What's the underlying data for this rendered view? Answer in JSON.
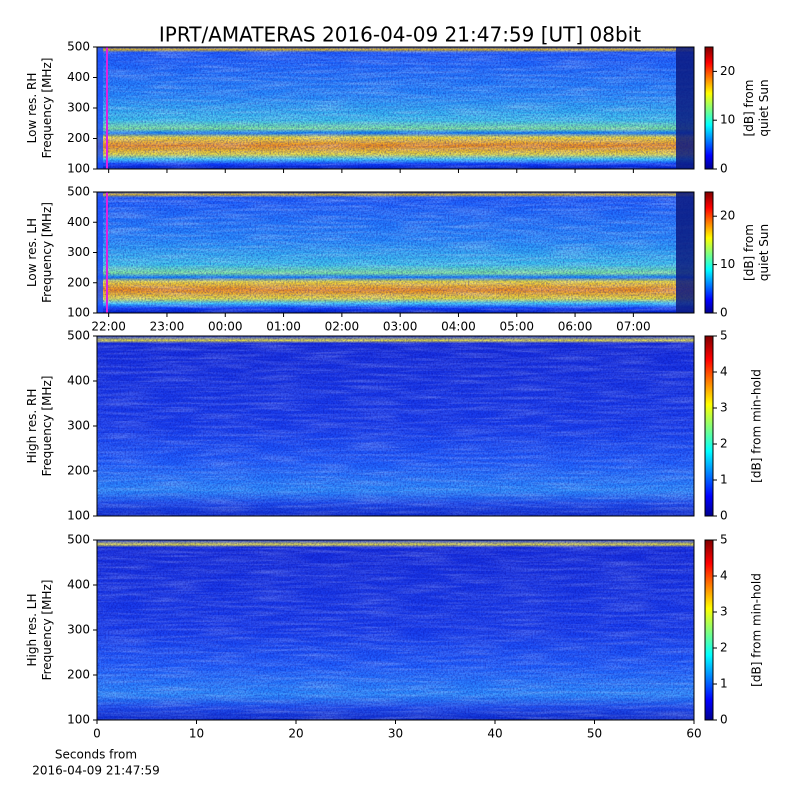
{
  "title": "IPRT/AMATERAS 2016-04-09 21:47:59 [UT]   08bit",
  "chart_data": [
    {
      "type": "spectrogram",
      "ylabel": [
        "Low res. RH",
        "Frequency [MHz]"
      ],
      "ylim": [
        100,
        500
      ],
      "yticks": [
        100,
        200,
        300,
        400,
        500
      ],
      "colormap": "jet",
      "clabel": [
        "[dB] from",
        "quiet Sun"
      ],
      "clim": [
        0,
        25
      ],
      "cticks": [
        0,
        10,
        20
      ]
    },
    {
      "type": "spectrogram",
      "ylabel": [
        "Low res. LH",
        "Frequency [MHz]"
      ],
      "ylim": [
        100,
        500
      ],
      "yticks": [
        100,
        200,
        300,
        400,
        500
      ],
      "colormap": "jet",
      "clabel": [
        "[dB] from",
        "quiet Sun"
      ],
      "clim": [
        0,
        25
      ],
      "cticks": [
        0,
        10,
        20
      ],
      "xlim": [
        21.8,
        32.04
      ],
      "xticks": [
        {
          "value": 22,
          "label": "22:00"
        },
        {
          "value": 23,
          "label": "23:00"
        },
        {
          "value": 24,
          "label": "00:00"
        },
        {
          "value": 25,
          "label": "01:00"
        },
        {
          "value": 26,
          "label": "02:00"
        },
        {
          "value": 27,
          "label": "03:00"
        },
        {
          "value": 28,
          "label": "04:00"
        },
        {
          "value": 29,
          "label": "05:00"
        },
        {
          "value": 30,
          "label": "06:00"
        },
        {
          "value": 31,
          "label": "07:00"
        }
      ]
    },
    {
      "type": "spectrogram",
      "ylabel": [
        "High res. RH",
        "Frequency [MHz]"
      ],
      "ylim": [
        100,
        500
      ],
      "yticks": [
        100,
        200,
        300,
        400,
        500
      ],
      "colormap": "jet",
      "clabel": [
        "[dB] from min-hold"
      ],
      "clim": [
        0,
        5
      ],
      "cticks": [
        0,
        1,
        2,
        3,
        4,
        5
      ]
    },
    {
      "type": "spectrogram",
      "ylabel": [
        "High res. LH",
        "Frequency [MHz]"
      ],
      "ylim": [
        100,
        500
      ],
      "yticks": [
        100,
        200,
        300,
        400,
        500
      ],
      "colormap": "jet",
      "clabel": [
        "[dB] from min-hold"
      ],
      "clim": [
        0,
        5
      ],
      "cticks": [
        0,
        1,
        2,
        3,
        4,
        5
      ],
      "xlim": [
        0,
        60
      ],
      "xticks": [
        0,
        10,
        20,
        30,
        40,
        50,
        60
      ],
      "xlabel": [
        "Seconds from",
        "2016-04-09 21:47:59"
      ]
    }
  ]
}
